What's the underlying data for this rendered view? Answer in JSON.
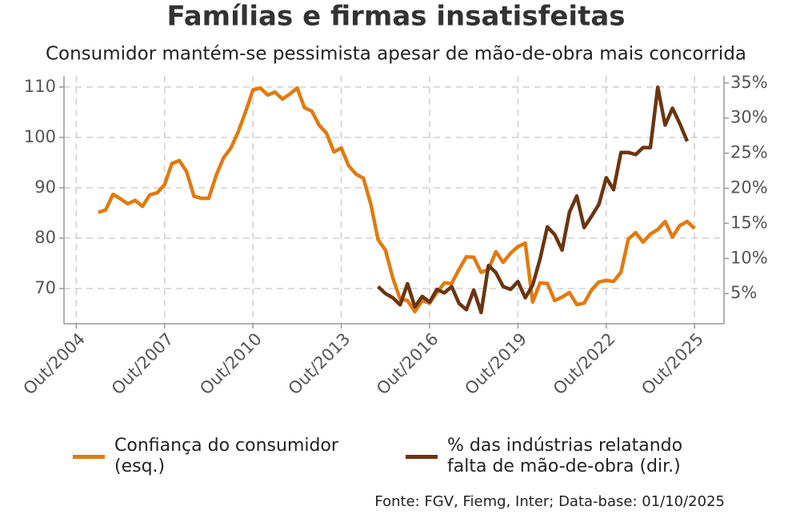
{
  "chart_data": {
    "type": "line",
    "title": "Famílias e firmas insatisfeitas",
    "subtitle": "Consumidor mantém-se pessimista apesar de mão-de-obra mais concorrida",
    "source": "Fonte: FGV, Fiemg, Inter; Data-base: 01/10/2025",
    "xlim": [
      "2004-05",
      "2026-10"
    ],
    "xticks": [
      {
        "value": "2004-10",
        "label": "Out/2004"
      },
      {
        "value": "2007-10",
        "label": "Out/2007"
      },
      {
        "value": "2010-10",
        "label": "Out/2010"
      },
      {
        "value": "2013-10",
        "label": "Out/2013"
      },
      {
        "value": "2016-10",
        "label": "Out/2016"
      },
      {
        "value": "2019-10",
        "label": "Out/2019"
      },
      {
        "value": "2022-10",
        "label": "Out/2022"
      },
      {
        "value": "2025-10",
        "label": "Out/2025"
      }
    ],
    "ylim": [
      63,
      112.2
    ],
    "yticks": [
      70,
      80,
      90,
      100,
      110
    ],
    "y2lim": [
      0.7,
      36
    ],
    "y2ticks": [
      {
        "value": 5,
        "label": "5%"
      },
      {
        "value": 10,
        "label": "10%"
      },
      {
        "value": 15,
        "label": "15%"
      },
      {
        "value": 20,
        "label": "20%"
      },
      {
        "value": 25,
        "label": "25%"
      },
      {
        "value": 30,
        "label": "30%"
      },
      {
        "value": 35,
        "label": "35%"
      }
    ],
    "grid": true,
    "legend": "bottom",
    "series": [
      {
        "name": "Confiança do consumidor (esq.)",
        "color": "#e07b10",
        "axis": "y",
        "x": [
          "2005-07",
          "2005-10",
          "2006-01",
          "2006-04",
          "2006-07",
          "2006-10",
          "2007-01",
          "2007-04",
          "2007-07",
          "2007-10",
          "2008-01",
          "2008-04",
          "2008-07",
          "2008-10",
          "2009-01",
          "2009-04",
          "2009-07",
          "2009-10",
          "2010-01",
          "2010-04",
          "2010-07",
          "2010-10",
          "2011-01",
          "2011-04",
          "2011-07",
          "2011-10",
          "2012-01",
          "2012-04",
          "2012-07",
          "2012-10",
          "2013-01",
          "2013-04",
          "2013-07",
          "2013-10",
          "2014-01",
          "2014-04",
          "2014-07",
          "2014-10",
          "2015-01",
          "2015-04",
          "2015-07",
          "2015-10",
          "2016-01",
          "2016-04",
          "2016-07",
          "2016-10",
          "2017-01",
          "2017-04",
          "2017-07",
          "2017-10",
          "2018-01",
          "2018-04",
          "2018-07",
          "2018-10",
          "2019-01",
          "2019-04",
          "2019-07",
          "2019-10",
          "2020-01",
          "2020-04",
          "2020-07",
          "2020-10",
          "2021-01",
          "2021-04",
          "2021-07",
          "2021-10",
          "2022-01",
          "2022-04",
          "2022-07",
          "2022-10",
          "2023-01",
          "2023-04",
          "2023-07",
          "2023-10",
          "2024-01",
          "2024-04",
          "2024-07",
          "2024-10",
          "2025-01",
          "2025-04",
          "2025-07",
          "2025-10"
        ],
        "values": [
          85.1,
          85.6,
          88.7,
          87.8,
          86.8,
          87.5,
          86.3,
          88.6,
          89.0,
          90.6,
          94.8,
          95.4,
          93.2,
          88.3,
          87.9,
          87.9,
          92.4,
          95.9,
          97.9,
          101.1,
          105.1,
          109.4,
          109.8,
          108.4,
          109.0,
          107.6,
          108.6,
          109.8,
          105.9,
          105.2,
          102.4,
          100.8,
          97.1,
          97.9,
          94.4,
          92.7,
          91.9,
          86.8,
          79.7,
          77.6,
          72.1,
          67.9,
          67.6,
          65.4,
          67.6,
          67.1,
          69.2,
          71.1,
          71.0,
          73.8,
          76.3,
          76.2,
          73.2,
          73.8,
          77.3,
          75.2,
          77.0,
          78.3,
          79.0,
          67.3,
          71.1,
          71.0,
          67.6,
          68.3,
          69.2,
          66.8,
          67.1,
          69.7,
          71.3,
          71.6,
          71.4,
          73.2,
          79.8,
          81.1,
          79.2,
          80.8,
          81.7,
          83.3,
          80.2,
          82.5,
          83.3,
          81.9
        ]
      },
      {
        "name": "% das indústrias relatando falta de mão-de-obra (dir.)",
        "color": "#6b3510",
        "axis": "y2",
        "x": [
          "2015-01",
          "2015-04",
          "2015-07",
          "2015-10",
          "2016-01",
          "2016-04",
          "2016-07",
          "2016-10",
          "2017-01",
          "2017-04",
          "2017-07",
          "2017-10",
          "2018-01",
          "2018-04",
          "2018-07",
          "2018-10",
          "2019-01",
          "2019-04",
          "2019-07",
          "2019-10",
          "2020-01",
          "2020-04",
          "2020-07",
          "2020-10",
          "2021-01",
          "2021-04",
          "2021-07",
          "2021-10",
          "2022-01",
          "2022-04",
          "2022-07",
          "2022-10",
          "2023-01",
          "2023-04",
          "2023-07",
          "2023-10",
          "2024-01",
          "2024-04",
          "2024-07",
          "2024-10",
          "2025-01",
          "2025-04",
          "2025-07"
        ],
        "values": [
          6.0,
          5.0,
          4.4,
          3.4,
          6.4,
          3.1,
          4.6,
          3.8,
          5.6,
          5.1,
          6.0,
          3.6,
          2.7,
          5.5,
          2.3,
          9.0,
          8.0,
          6.0,
          5.6,
          6.7,
          4.4,
          6.2,
          9.9,
          14.5,
          13.4,
          11.2,
          16.6,
          18.9,
          14.4,
          16.0,
          17.7,
          21.5,
          19.8,
          25.1,
          25.1,
          24.8,
          25.8,
          25.8,
          34.4,
          29.0,
          31.4,
          29.2,
          26.7
        ]
      }
    ]
  }
}
